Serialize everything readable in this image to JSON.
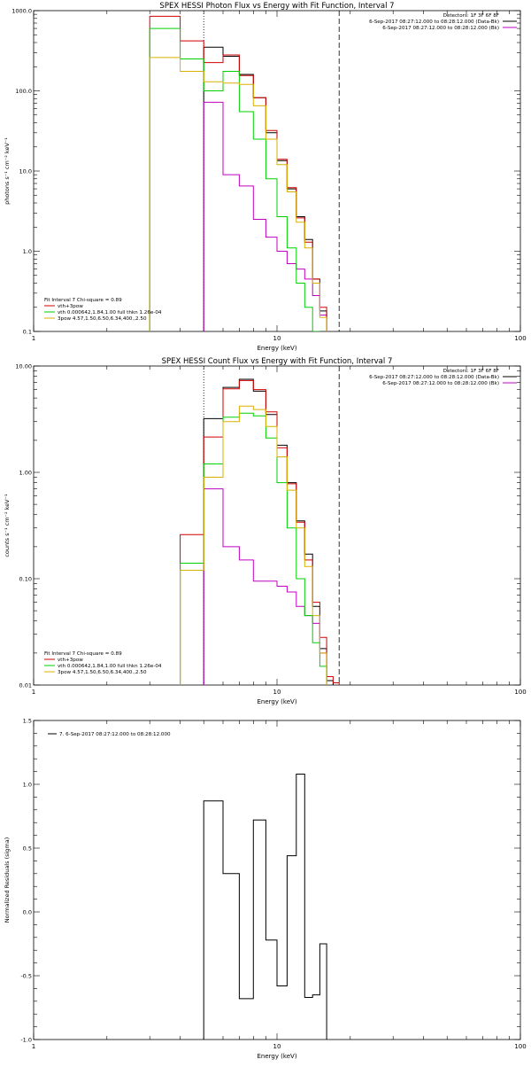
{
  "panels": [
    {
      "title": "SPEX HESSI Photon Flux vs Energy with Fit Function, Interval 7",
      "xlabel": "Energy (keV)",
      "ylabel": "photons s⁻¹ cm⁻² keV⁻¹",
      "x_ticks": [
        "1",
        "10",
        "100"
      ],
      "y_ticks": [
        "0.1",
        "1.0",
        "10.0",
        "100.0",
        "1000.0"
      ],
      "header_lines": [
        "Detectors: 1F 3F 6F 8F",
        "6-Sep-2017 08:27:12.000 to 08:28:12.000 (Data-Bk)",
        "6-Sep-2017 08:27:12.000 to 08:28:12.000 (Bk)"
      ],
      "fit_label": "Fit Interval 7   Chi-square = 0.89",
      "legend": [
        "vth+3pow",
        "vth 0.000642,1.84,1.00  full thkn 1.26e-04",
        "3pow 4.57,1.50,6.50,6.34,400.,2.50"
      ]
    },
    {
      "title": "SPEX HESSI Count Flux vs Energy with Fit Function, Interval 7",
      "xlabel": "Energy (keV)",
      "ylabel": "counts s⁻¹ cm⁻² keV⁻¹",
      "x_ticks": [
        "1",
        "10",
        "100"
      ],
      "y_ticks": [
        "0.01",
        "0.10",
        "1.00",
        "10.00"
      ],
      "header_lines": [
        "Detectors: 1F 3F 6F 8F",
        "6-Sep-2017 08:27:12.000 to 08:28:12.000 (Data-Bk)",
        "6-Sep-2017 08:27:12.000 to 08:28:12.000 (Bk)"
      ],
      "fit_label": "Fit Interval 7   Chi-square = 0.89",
      "legend": [
        "vth+3pow",
        "vth 0.000642,1.84,1.00  full thkn 1.26e-04",
        "3pow 4.57,1.50,6.50,6.34,400.,2.50"
      ]
    },
    {
      "title": "",
      "xlabel": "Energy (keV)",
      "ylabel": "Normalized Residuals (sigma)",
      "x_ticks": [
        "1",
        "10",
        "100"
      ],
      "y_ticks": [
        "-1.0",
        "-0.5",
        "0.0",
        "0.5",
        "1.0",
        "1.5"
      ],
      "legend": [
        "7.  6-Sep-2017 08:27:12.000 to 08:28:12.000"
      ]
    }
  ],
  "colors": {
    "data": "#000000",
    "background": "#c000c0",
    "total_fit": "#d00000",
    "thermal": "#00d000",
    "powerlaw": "#d8b000"
  },
  "chart_data": [
    {
      "type": "line",
      "title": "SPEX HESSI Photon Flux vs Energy with Fit Function, Interval 7",
      "xlabel": "Energy (keV)",
      "ylabel": "photons s⁻¹ cm⁻² keV⁻¹",
      "xscale": "log",
      "yscale": "log",
      "xlim": [
        1,
        100
      ],
      "ylim": [
        0.1,
        1000
      ],
      "fit_range": [
        5,
        18
      ],
      "bin_edges": [
        3,
        4,
        5,
        6,
        7,
        8,
        9,
        10,
        11,
        12,
        13,
        14,
        15,
        16,
        17,
        18,
        20
      ],
      "series": [
        {
          "name": "Data-Bk",
          "color": "#000000",
          "values": [
            null,
            null,
            350,
            270,
            160,
            82,
            30,
            13.5,
            6,
            2.7,
            1.4,
            0.45,
            0.18,
            null,
            null,
            null
          ]
        },
        {
          "name": "Bk",
          "color": "#c000c0",
          "values": [
            null,
            null,
            72,
            9,
            6.5,
            2.5,
            1.5,
            1.0,
            0.7,
            0.6,
            0.45,
            0.28,
            0.16,
            null,
            null,
            null
          ]
        },
        {
          "name": "vth+3pow",
          "color": "#d00000",
          "values": [
            850,
            420,
            225,
            280,
            155,
            82,
            32,
            14,
            6.2,
            2.6,
            1.3,
            0.45,
            0.2,
            null,
            null,
            null
          ]
        },
        {
          "name": "vth 0.000642,1.84,1.00  full thkn 1.26e-04",
          "color": "#00d000",
          "values": [
            600,
            250,
            100,
            175,
            55,
            25,
            8,
            2.7,
            1.1,
            0.4,
            0.2,
            0.1,
            null,
            null,
            null,
            null
          ]
        },
        {
          "name": "3pow 4.57,1.50,6.50,6.34,400.,2.50",
          "color": "#d8b000",
          "values": [
            260,
            175,
            130,
            125,
            120,
            65,
            25,
            12,
            5.5,
            2.3,
            1.1,
            0.4,
            0.15,
            null,
            null,
            null
          ]
        }
      ]
    },
    {
      "type": "line",
      "title": "SPEX HESSI Count Flux vs Energy with Fit Function, Interval 7",
      "xlabel": "Energy (keV)",
      "ylabel": "counts s⁻¹ cm⁻² keV⁻¹",
      "xscale": "log",
      "yscale": "log",
      "xlim": [
        1,
        100
      ],
      "ylim": [
        0.01,
        10
      ],
      "fit_range": [
        5,
        18
      ],
      "bin_edges": [
        3,
        4,
        5,
        6,
        7,
        8,
        9,
        10,
        11,
        12,
        13,
        14,
        15,
        16,
        17,
        18,
        20
      ],
      "series": [
        {
          "name": "Data-Bk",
          "color": "#000000",
          "values": [
            null,
            null,
            3.2,
            6.3,
            7.5,
            5.8,
            3.5,
            1.8,
            0.8,
            0.35,
            0.17,
            0.055,
            0.022,
            0.011,
            null,
            null
          ]
        },
        {
          "name": "Bk",
          "color": "#c000c0",
          "values": [
            null,
            null,
            0.7,
            0.2,
            0.15,
            0.095,
            0.095,
            0.085,
            0.075,
            0.055,
            0.045,
            0.038,
            0.02,
            null,
            null,
            null
          ]
        },
        {
          "name": "vth+3pow",
          "color": "#d00000",
          "values": [
            null,
            0.26,
            2.15,
            6.1,
            7.3,
            6.0,
            3.7,
            1.7,
            0.78,
            0.34,
            0.15,
            0.06,
            0.028,
            0.012,
            0.0105,
            null
          ]
        },
        {
          "name": "vth 0.000642,1.84,1.00  full thkn 1.26e-04",
          "color": "#00d000",
          "values": [
            null,
            0.14,
            1.2,
            3.3,
            3.6,
            3.4,
            2.1,
            0.8,
            0.3,
            0.1,
            0.045,
            0.025,
            0.015,
            null,
            null,
            null
          ]
        },
        {
          "name": "3pow 4.57,1.50,6.50,6.34,400.,2.50",
          "color": "#d8b000",
          "values": [
            null,
            0.12,
            0.9,
            3.0,
            4.2,
            3.9,
            2.7,
            1.4,
            0.68,
            0.3,
            0.13,
            0.045,
            0.02,
            null,
            null,
            null
          ]
        }
      ]
    },
    {
      "type": "line",
      "title": "",
      "xlabel": "Energy (keV)",
      "ylabel": "Normalized Residuals (sigma)",
      "xscale": "log",
      "yscale": "linear",
      "xlim": [
        1,
        100
      ],
      "ylim": [
        -1.0,
        1.5
      ],
      "bin_edges": [
        5,
        6,
        7,
        8,
        9,
        10,
        11,
        12,
        13,
        14,
        15,
        16,
        17,
        18
      ],
      "series": [
        {
          "name": "7.  6-Sep-2017 08:27:12.000 to 08:28:12.000",
          "color": "#000000",
          "values": [
            0.87,
            0.3,
            -0.68,
            0.72,
            -0.22,
            -0.58,
            0.44,
            1.08,
            -0.67,
            -0.65,
            -0.25,
            null,
            null
          ]
        }
      ]
    }
  ]
}
